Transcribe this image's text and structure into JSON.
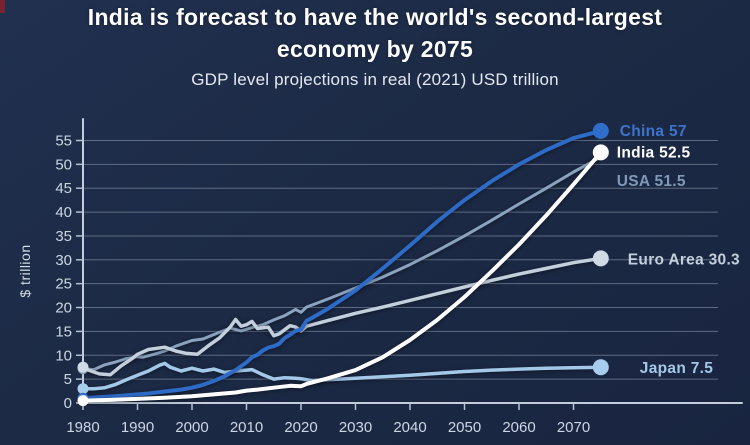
{
  "header": {
    "title_line1": "India is forecast to have the world's second-largest",
    "title_line2": "economy by 2075",
    "subtitle": "GDP level projections in real (2021) USD trillion"
  },
  "colors": {
    "background": "#1d2b48",
    "grid": "#93a2b8",
    "axis": "#c3cddc",
    "tick_text": "#ccd6e3",
    "title_text": "#ffffff",
    "subtitle_text": "#e3e9f2"
  },
  "chart_data": {
    "type": "line",
    "title": "India is forecast to have the world's second-largest economy by 2075",
    "subtitle": "GDP level projections in real (2021) USD trillion",
    "xlabel": "",
    "ylabel": "$ trillion",
    "xlim": [
      1980,
      2075
    ],
    "ylim": [
      0,
      57
    ],
    "grid": true,
    "legend_position": "end-of-line-labels",
    "yticks": [
      0,
      5,
      10,
      15,
      20,
      25,
      30,
      35,
      40,
      45,
      50,
      55
    ],
    "xticks": [
      1980,
      1990,
      2000,
      2010,
      2020,
      2030,
      2040,
      2050,
      2060,
      2070
    ],
    "series": [
      {
        "id": "china",
        "name": "China",
        "label": "China 57",
        "final_value": 57,
        "color": "#2e6bc6",
        "dot_color": "#2f6ecb",
        "label_color": "#3d74cc",
        "width": 4,
        "end_dot": true,
        "label_dx": 19,
        "label_dy": 0,
        "points": [
          [
            1980,
            1.0
          ],
          [
            1983,
            1.2
          ],
          [
            1986,
            1.45
          ],
          [
            1989,
            1.7
          ],
          [
            1992,
            2.0
          ],
          [
            1995,
            2.4
          ],
          [
            1998,
            2.8
          ],
          [
            2000,
            3.2
          ],
          [
            2002,
            3.8
          ],
          [
            2004,
            4.6
          ],
          [
            2006,
            5.6
          ],
          [
            2008,
            6.9
          ],
          [
            2010,
            8.5
          ],
          [
            2011,
            9.6
          ],
          [
            2012,
            10.1
          ],
          [
            2013,
            11.0
          ],
          [
            2014,
            11.6
          ],
          [
            2015,
            11.9
          ],
          [
            2016,
            12.4
          ],
          [
            2017,
            13.6
          ],
          [
            2018,
            14.3
          ],
          [
            2019,
            15.1
          ],
          [
            2020,
            15.4
          ],
          [
            2021,
            17.2
          ],
          [
            2022,
            17.8
          ],
          [
            2025,
            19.8
          ],
          [
            2030,
            23.6
          ],
          [
            2035,
            28.2
          ],
          [
            2040,
            33.0
          ],
          [
            2045,
            38.0
          ],
          [
            2050,
            42.5
          ],
          [
            2055,
            46.5
          ],
          [
            2060,
            50.0
          ],
          [
            2065,
            53.0
          ],
          [
            2070,
            55.5
          ],
          [
            2075,
            57.0
          ]
        ]
      },
      {
        "id": "india",
        "name": "India",
        "label": "India 52.5",
        "final_value": 52.5,
        "color": "#ffffff",
        "dot_color": "#ffffff",
        "label_color": "#ffffff",
        "width": 4,
        "end_dot": true,
        "label_dx": 16,
        "label_dy": 0,
        "points": [
          [
            1980,
            0.5
          ],
          [
            1985,
            0.65
          ],
          [
            1990,
            0.85
          ],
          [
            1995,
            1.1
          ],
          [
            2000,
            1.4
          ],
          [
            2005,
            1.9
          ],
          [
            2008,
            2.2
          ],
          [
            2010,
            2.6
          ],
          [
            2012,
            2.8
          ],
          [
            2015,
            3.2
          ],
          [
            2018,
            3.6
          ],
          [
            2020,
            3.5
          ],
          [
            2021,
            4.0
          ],
          [
            2025,
            5.2
          ],
          [
            2030,
            6.9
          ],
          [
            2035,
            9.6
          ],
          [
            2040,
            13.2
          ],
          [
            2045,
            17.4
          ],
          [
            2050,
            22.2
          ],
          [
            2055,
            27.6
          ],
          [
            2060,
            33.2
          ],
          [
            2065,
            39.3
          ],
          [
            2070,
            45.8
          ],
          [
            2075,
            52.5
          ]
        ]
      },
      {
        "id": "usa",
        "name": "USA",
        "label": "USA 51.5",
        "final_value": 51.5,
        "color": "#8ba3bf",
        "dot_color": "#8ba3bf",
        "label_color": "#8099b8",
        "width": 3,
        "end_dot": false,
        "label_dx": 16,
        "label_dy": 24,
        "points": [
          [
            1980,
            7.2
          ],
          [
            1982,
            7.0
          ],
          [
            1984,
            8.0
          ],
          [
            1986,
            8.6
          ],
          [
            1988,
            9.3
          ],
          [
            1990,
            9.7
          ],
          [
            1991,
            9.6
          ],
          [
            1993,
            10.2
          ],
          [
            1995,
            10.9
          ],
          [
            1997,
            11.9
          ],
          [
            2000,
            13.1
          ],
          [
            2002,
            13.4
          ],
          [
            2005,
            14.8
          ],
          [
            2007,
            15.7
          ],
          [
            2009,
            15.1
          ],
          [
            2011,
            15.8
          ],
          [
            2013,
            16.4
          ],
          [
            2015,
            17.4
          ],
          [
            2017,
            18.3
          ],
          [
            2019,
            19.6
          ],
          [
            2020,
            19.0
          ],
          [
            2021,
            20.1
          ],
          [
            2025,
            21.8
          ],
          [
            2030,
            24.1
          ],
          [
            2035,
            26.4
          ],
          [
            2040,
            29.0
          ],
          [
            2045,
            31.9
          ],
          [
            2050,
            35.0
          ],
          [
            2055,
            38.3
          ],
          [
            2060,
            41.7
          ],
          [
            2065,
            45.0
          ],
          [
            2070,
            48.4
          ],
          [
            2075,
            51.5
          ]
        ]
      },
      {
        "id": "euro-area",
        "name": "Euro Area",
        "label": "Euro Area 30.3",
        "final_value": 30.3,
        "color": "#c3cfdd",
        "dot_color": "#cfdae6",
        "label_color": "#c3cfdd",
        "width": 3.5,
        "end_dot": true,
        "label_dx": 27,
        "label_dy": 1,
        "points": [
          [
            1980,
            7.5
          ],
          [
            1981,
            6.9
          ],
          [
            1983,
            6.1
          ],
          [
            1985,
            5.9
          ],
          [
            1987,
            7.8
          ],
          [
            1989,
            9.3
          ],
          [
            1990,
            10.2
          ],
          [
            1992,
            11.2
          ],
          [
            1995,
            11.7
          ],
          [
            1997,
            10.9
          ],
          [
            1999,
            10.4
          ],
          [
            2001,
            10.2
          ],
          [
            2003,
            12.0
          ],
          [
            2005,
            13.6
          ],
          [
            2007,
            15.9
          ],
          [
            2008,
            17.5
          ],
          [
            2009,
            16.1
          ],
          [
            2010,
            16.4
          ],
          [
            2011,
            17.1
          ],
          [
            2012,
            15.6
          ],
          [
            2014,
            15.9
          ],
          [
            2015,
            14.1
          ],
          [
            2016,
            14.5
          ],
          [
            2018,
            16.2
          ],
          [
            2019,
            15.9
          ],
          [
            2020,
            15.1
          ],
          [
            2021,
            16.1
          ],
          [
            2025,
            17.3
          ],
          [
            2030,
            18.8
          ],
          [
            2035,
            20.1
          ],
          [
            2040,
            21.5
          ],
          [
            2045,
            22.9
          ],
          [
            2050,
            24.3
          ],
          [
            2055,
            25.7
          ],
          [
            2060,
            27.0
          ],
          [
            2065,
            28.2
          ],
          [
            2070,
            29.4
          ],
          [
            2075,
            30.3
          ]
        ]
      },
      {
        "id": "japan",
        "name": "Japan",
        "label": "Japan 7.5",
        "final_value": 7.5,
        "color": "#a3c8e8",
        "dot_color": "#a8cdec",
        "label_color": "#a3c8e8",
        "width": 3.5,
        "end_dot": true,
        "label_dx": 39,
        "label_dy": 1,
        "points": [
          [
            1980,
            3.0
          ],
          [
            1982,
            3.0
          ],
          [
            1984,
            3.2
          ],
          [
            1986,
            3.9
          ],
          [
            1988,
            4.9
          ],
          [
            1990,
            5.8
          ],
          [
            1992,
            6.7
          ],
          [
            1994,
            7.9
          ],
          [
            1995,
            8.3
          ],
          [
            1996,
            7.5
          ],
          [
            1998,
            6.7
          ],
          [
            2000,
            7.3
          ],
          [
            2002,
            6.7
          ],
          [
            2004,
            7.1
          ],
          [
            2006,
            6.4
          ],
          [
            2008,
            6.7
          ],
          [
            2010,
            6.9
          ],
          [
            2011,
            7.0
          ],
          [
            2013,
            5.9
          ],
          [
            2015,
            5.0
          ],
          [
            2017,
            5.3
          ],
          [
            2019,
            5.2
          ],
          [
            2020,
            5.1
          ],
          [
            2022,
            4.7
          ],
          [
            2025,
            4.9
          ],
          [
            2030,
            5.2
          ],
          [
            2035,
            5.5
          ],
          [
            2040,
            5.8
          ],
          [
            2045,
            6.2
          ],
          [
            2050,
            6.6
          ],
          [
            2055,
            6.9
          ],
          [
            2060,
            7.1
          ],
          [
            2065,
            7.3
          ],
          [
            2070,
            7.4
          ],
          [
            2075,
            7.5
          ]
        ]
      }
    ]
  }
}
